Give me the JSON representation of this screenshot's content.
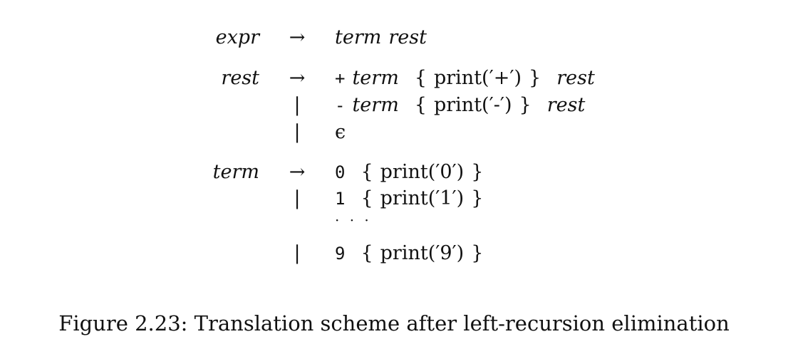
{
  "grammar": {
    "expr_lhs": "expr",
    "rest_lhs": "rest",
    "term_lhs": "term",
    "arrow": "→",
    "bar": "|",
    "nt_term": "term",
    "nt_rest": "rest",
    "op_plus": "+",
    "op_minus": "-",
    "epsilon": "ϵ",
    "brace_open": "{",
    "brace_close": "}",
    "print_plus": "print(′+′)",
    "print_minus": "print(′-′)",
    "digit_0": "0",
    "digit_1": "1",
    "digit_9": "9",
    "print_0": "print(′0′)",
    "print_1": "print(′1′)",
    "print_9": "print(′9′)",
    "ellipsis": "· · ·"
  },
  "caption": "Figure 2.23: Translation scheme after left-recursion elimination"
}
